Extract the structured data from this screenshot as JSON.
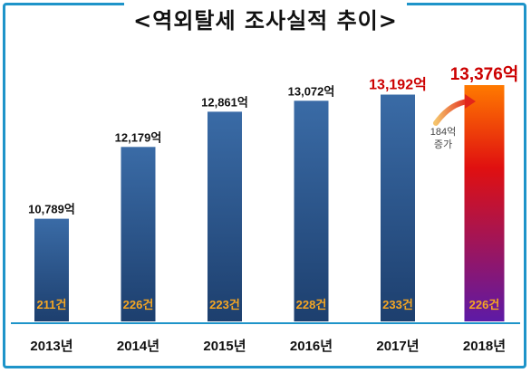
{
  "title": "<역외탈세 조사실적 추이>",
  "chart_data": {
    "type": "bar",
    "title": "<역외탈세 조사실적 추이>",
    "categories": [
      "2013년",
      "2014년",
      "2015년",
      "2016년",
      "2017년",
      "2018년"
    ],
    "values": [
      10789,
      12179,
      12861,
      13072,
      13192,
      13376
    ],
    "value_labels": [
      "10,789억",
      "12,179억",
      "12,861억",
      "13,072억",
      "13,192억",
      "13,376억"
    ],
    "case_labels": [
      "211건",
      "226건",
      "223건",
      "228건",
      "233건",
      "226건"
    ],
    "annotation": {
      "line1": "184억",
      "line2": "증가"
    },
    "ylim": [
      8800,
      13376
    ],
    "grid": false,
    "colors": {
      "bar": "#2f5c93",
      "bar_highlight_top": "#ff6a00",
      "bar_highlight_mid": "#d40000",
      "bar_highlight_bottom": "#6f1aa8",
      "highlight_text": "#cc0000",
      "case_text": "#f5a623",
      "frame": "#1e94c9"
    }
  }
}
